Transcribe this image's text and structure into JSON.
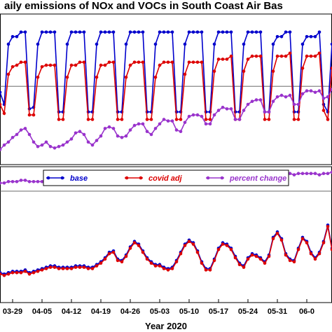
{
  "chart_data": {
    "type": "line",
    "title": "aily emissions of NOx and VOCs in South Coast Air Bas",
    "xlabel": "Year 2020",
    "x_ticks": [
      "03-29",
      "04-05",
      "04-12",
      "04-19",
      "04-26",
      "05-03",
      "05-10",
      "05-17",
      "05-24",
      "05-31",
      "06-0"
    ],
    "legend": {
      "placement": "inside-bottom-panel-top",
      "entries": [
        "base",
        "covid adj",
        "percent change"
      ]
    },
    "colors": {
      "base": "#0000cc",
      "covid adj": "#dd0000",
      "percent change": "#9933cc"
    },
    "grid": false,
    "panels": [
      {
        "id": "NOx",
        "ylim": [
          0,
          100
        ],
        "reference_line": 52,
        "series": [
          {
            "name": "base",
            "values": [
              48,
              40,
              80,
              85,
              85,
              88,
              88,
              37,
              38,
              80,
              88,
              88,
              88,
              88,
              35,
              35,
              80,
              88,
              88,
              88,
              88,
              35,
              35,
              80,
              88,
              88,
              88,
              88,
              35,
              35,
              80,
              88,
              88,
              88,
              88,
              35,
              35,
              80,
              88,
              88,
              88,
              88,
              35,
              35,
              80,
              88,
              88,
              88,
              88,
              35,
              35,
              80,
              88,
              88,
              88,
              88,
              35,
              35,
              80,
              88,
              88,
              88,
              88,
              35,
              35,
              80,
              85,
              85,
              88,
              88,
              35,
              35,
              80,
              85,
              85,
              85,
              88,
              40,
              35,
              80
            ]
          },
          {
            "name": "covid adj",
            "values": [
              40,
              34,
              60,
              65,
              66,
              68,
              68,
              33,
              33,
              58,
              65,
              66,
              66,
              66,
              30,
              30,
              58,
              66,
              66,
              68,
              68,
              30,
              30,
              58,
              66,
              66,
              68,
              68,
              30,
              30,
              58,
              66,
              68,
              68,
              68,
              30,
              30,
              58,
              66,
              68,
              68,
              68,
              30,
              30,
              60,
              68,
              68,
              68,
              68,
              30,
              30,
              62,
              70,
              70,
              70,
              72,
              30,
              30,
              62,
              70,
              72,
              72,
              72,
              30,
              30,
              62,
              72,
              72,
              72,
              74,
              30,
              30,
              64,
              72,
              72,
              72,
              74,
              36,
              30,
              64
            ]
          },
          {
            "name": "percent change",
            "values": [
              10,
              13,
              15,
              18,
              20,
              23,
              24,
              20,
              15,
              12,
              13,
              15,
              12,
              11,
              12,
              13,
              15,
              17,
              21,
              22,
              20,
              15,
              13,
              16,
              19,
              24,
              25,
              24,
              19,
              18,
              19,
              23,
              26,
              27,
              27,
              22,
              20,
              24,
              27,
              30,
              29,
              29,
              23,
              22,
              28,
              32,
              33,
              33,
              32,
              27,
              27,
              33,
              36,
              38,
              37,
              37,
              30,
              30,
              36,
              40,
              42,
              43,
              43,
              35,
              35,
              42,
              45,
              46,
              45,
              46,
              40,
              40,
              47,
              49,
              49,
              48,
              49,
              44,
              45,
              50
            ]
          }
        ]
      },
      {
        "id": "VOCs",
        "ylim": [
          0,
          100
        ],
        "reference_line": 82,
        "series": [
          {
            "name": "base",
            "values": [
              22,
              21,
              22,
              23,
              23,
              23,
              24,
              22,
              23,
              24,
              25,
              26,
              27,
              27,
              26,
              26,
              26,
              26,
              27,
              27,
              27,
              26,
              26,
              28,
              30,
              33,
              37,
              38,
              32,
              31,
              35,
              41,
              45,
              43,
              38,
              33,
              30,
              28,
              28,
              26,
              25,
              26,
              31,
              37,
              43,
              46,
              44,
              38,
              30,
              25,
              25,
              32,
              40,
              44,
              43,
              40,
              34,
              29,
              27,
              33,
              36,
              35,
              33,
              30,
              35,
              48,
              52,
              47,
              36,
              32,
              31,
              40,
              48,
              45,
              37,
              33,
              37,
              45,
              57,
              40
            ]
          },
          {
            "name": "covid adj",
            "values": [
              21,
              20,
              21,
              22,
              22,
              22,
              23,
              21,
              22,
              23,
              24,
              25,
              26,
              26,
              25,
              25,
              25,
              25,
              26,
              26,
              26,
              25,
              25,
              27,
              29,
              32,
              36,
              37,
              31,
              30,
              34,
              40,
              44,
              42,
              37,
              32,
              29,
              27,
              27,
              25,
              24,
              25,
              30,
              36,
              42,
              45,
              43,
              37,
              29,
              24,
              24,
              31,
              39,
              43,
              42,
              39,
              33,
              28,
              26,
              32,
              35,
              34,
              32,
              29,
              34,
              47,
              51,
              46,
              35,
              31,
              30,
              39,
              47,
              44,
              36,
              32,
              36,
              44,
              56,
              39
            ]
          },
          {
            "name": "percent change",
            "values": [
              88,
              88,
              89,
              89,
              89,
              90,
              90,
              89,
              89,
              89,
              89,
              90,
              90,
              90,
              89,
              89,
              89,
              89,
              90,
              90,
              90,
              89,
              89,
              89,
              89,
              90,
              90,
              90,
              89,
              89,
              89,
              89,
              90,
              91,
              91,
              91,
              92,
              92,
              92,
              91,
              91,
              92,
              92,
              92,
              92,
              91,
              91,
              92,
              92,
              92,
              92,
              91,
              91,
              92,
              92,
              93,
              93,
              92,
              92,
              93,
              93,
              93,
              93,
              93,
              92,
              93,
              94,
              94,
              95,
              95,
              94,
              95,
              95,
              95,
              95,
              95,
              94,
              95,
              95,
              96
            ]
          }
        ]
      }
    ]
  }
}
